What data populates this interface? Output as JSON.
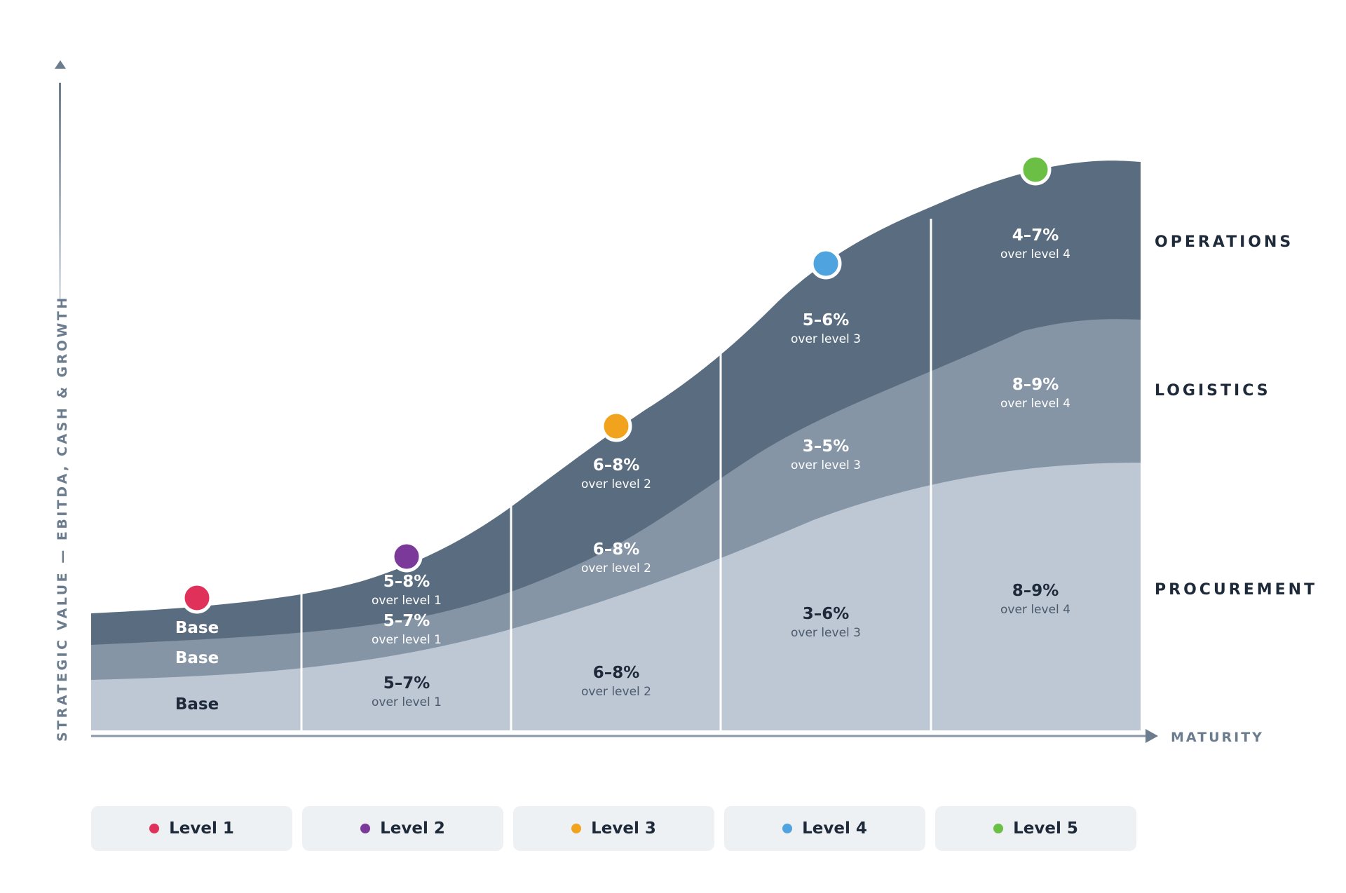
{
  "chart_data": {
    "type": "area",
    "ylabel": "STRATEGIC VALUE — EBITDA, CASH & GROWTH",
    "xlabel": "MATURITY",
    "categories": [
      "Level 1",
      "Level 2",
      "Level 3",
      "Level 4",
      "Level 5"
    ],
    "series": [
      {
        "name": "PROCUREMENT",
        "color": "#bdc8d4",
        "textColor": "#1e2a3a",
        "subColor": "#4c5a6b",
        "labels": [
          {
            "value": "Base",
            "note": ""
          },
          {
            "value": "5–7%",
            "note": "over level 1"
          },
          {
            "value": "6–8%",
            "note": "over level 2"
          },
          {
            "value": "3–6%",
            "note": "over level 3"
          },
          {
            "value": "8–9%",
            "note": "over level 4"
          }
        ]
      },
      {
        "name": "LOGISTICS",
        "color": "#8595a6",
        "textColor": "#ffffff",
        "subColor": "#ffffff",
        "labels": [
          {
            "value": "Base",
            "note": ""
          },
          {
            "value": "5–7%",
            "note": "over level 1"
          },
          {
            "value": "6–8%",
            "note": "over level 2"
          },
          {
            "value": "3–5%",
            "note": "over level 3"
          },
          {
            "value": "8–9%",
            "note": "over level 4"
          }
        ]
      },
      {
        "name": "OPERATIONS",
        "color": "#5a6d80",
        "textColor": "#ffffff",
        "subColor": "#ffffff",
        "labels": [
          {
            "value": "Base",
            "note": ""
          },
          {
            "value": "5–8%",
            "note": "over level 1"
          },
          {
            "value": "6–8%",
            "note": "over level 2"
          },
          {
            "value": "5–6%",
            "note": "over level 3"
          },
          {
            "value": "4–7%",
            "note": "over level 4"
          }
        ]
      }
    ],
    "level_colors": [
      "#e0315a",
      "#7b3a9a",
      "#f2a31e",
      "#4fa3de",
      "#6cbf45"
    ],
    "grid": false,
    "legend_placement": "bottom"
  }
}
